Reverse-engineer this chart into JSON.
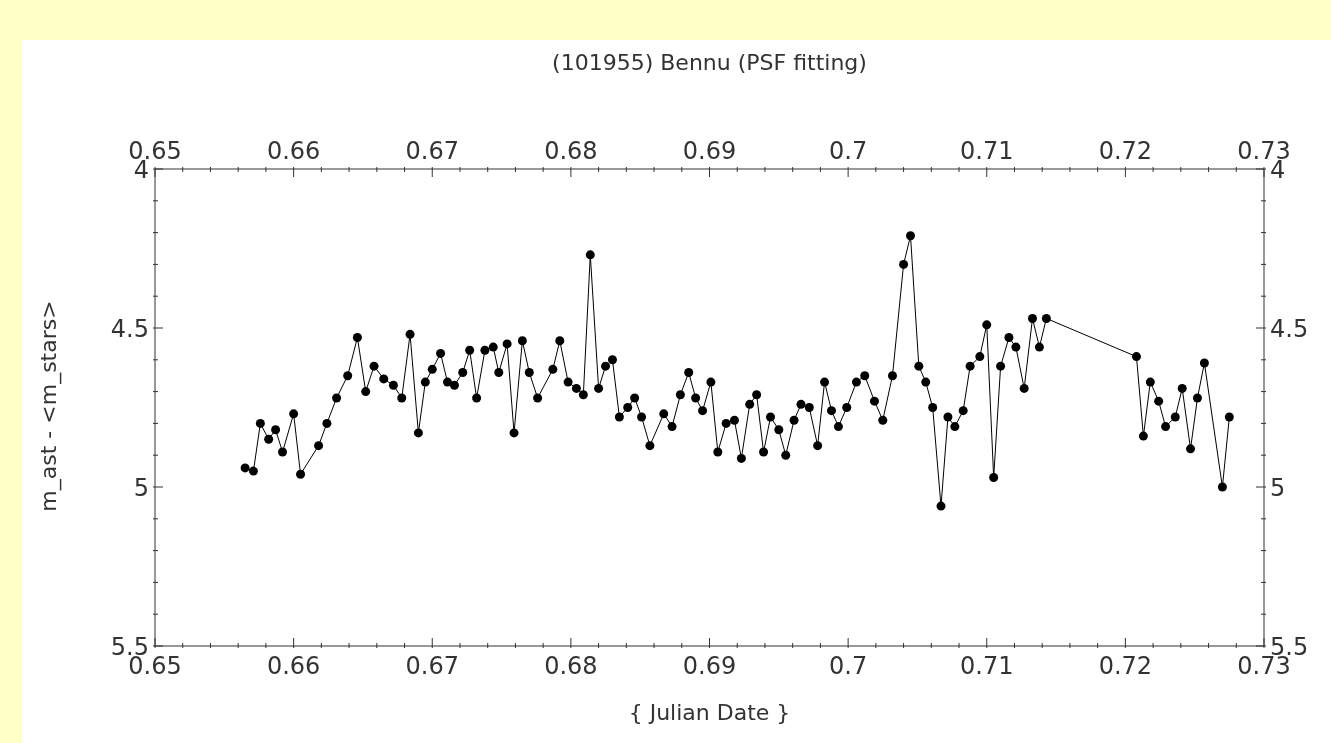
{
  "chart_data": {
    "type": "line",
    "title": "(101955) Bennu (PSF fitting)",
    "xlabel": "{ Julian Date }",
    "ylabel": "m_ast - <m_stars>",
    "marker": "circle",
    "line_style": "solid",
    "x": [
      0.6565,
      0.6571,
      0.6576,
      0.6582,
      0.6587,
      0.6592,
      0.66,
      0.6605,
      0.6618,
      0.6624,
      0.6631,
      0.6639,
      0.6646,
      0.6652,
      0.6658,
      0.6665,
      0.6672,
      0.6678,
      0.6684,
      0.669,
      0.6695,
      0.67,
      0.6706,
      0.6711,
      0.6716,
      0.6722,
      0.6727,
      0.6732,
      0.6738,
      0.6744,
      0.6748,
      0.6754,
      0.6759,
      0.6765,
      0.677,
      0.6776,
      0.6787,
      0.6792,
      0.6798,
      0.6804,
      0.6809,
      0.6814,
      0.682,
      0.6825,
      0.683,
      0.6835,
      0.6841,
      0.6846,
      0.6851,
      0.6857,
      0.6867,
      0.6873,
      0.6879,
      0.6885,
      0.689,
      0.6895,
      0.6901,
      0.6906,
      0.6912,
      0.6918,
      0.6923,
      0.6929,
      0.6934,
      0.6939,
      0.6944,
      0.695,
      0.6955,
      0.6961,
      0.6966,
      0.6972,
      0.6978,
      0.6983,
      0.6988,
      0.6993,
      0.6999,
      0.7006,
      0.7012,
      0.7019,
      0.7025,
      0.7032,
      0.704,
      0.7045,
      0.7051,
      0.7056,
      0.7061,
      0.7067,
      0.7072,
      0.7077,
      0.7083,
      0.7088,
      0.7095,
      0.71,
      0.7105,
      0.711,
      0.7116,
      0.7121,
      0.7127,
      0.7133,
      0.7138,
      0.7143,
      0.7208,
      0.7213,
      0.7218,
      0.7224,
      0.7229,
      0.7236,
      0.7241,
      0.7247,
      0.7252,
      0.7257,
      0.727,
      0.7275
    ],
    "series": [
      {
        "color": "#000000",
        "values": [
          4.94,
          4.95,
          4.8,
          4.85,
          4.82,
          4.89,
          4.77,
          4.96,
          4.87,
          4.8,
          4.72,
          4.65,
          4.53,
          4.7,
          4.62,
          4.66,
          4.68,
          4.72,
          4.52,
          4.83,
          4.67,
          4.63,
          4.58,
          4.67,
          4.68,
          4.64,
          4.57,
          4.72,
          4.57,
          4.56,
          4.64,
          4.55,
          4.83,
          4.54,
          4.64,
          4.72,
          4.63,
          4.54,
          4.67,
          4.69,
          4.71,
          4.27,
          4.69,
          4.62,
          4.6,
          4.78,
          4.75,
          4.72,
          4.78,
          4.87,
          4.77,
          4.81,
          4.71,
          4.64,
          4.72,
          4.76,
          4.67,
          4.89,
          4.8,
          4.79,
          4.91,
          4.74,
          4.71,
          4.89,
          4.78,
          4.82,
          4.9,
          4.79,
          4.74,
          4.75,
          4.87,
          4.67,
          4.76,
          4.81,
          4.75,
          4.67,
          4.65,
          4.73,
          4.79,
          4.65,
          4.3,
          4.21,
          4.62,
          4.67,
          4.75,
          5.06,
          4.78,
          4.81,
          4.76,
          4.62,
          4.59,
          4.49,
          4.97,
          4.62,
          4.53,
          4.56,
          4.69,
          4.47,
          4.56,
          4.47,
          4.59,
          4.84,
          4.67,
          4.73,
          4.81,
          4.78,
          4.69,
          4.88,
          4.72,
          4.61,
          5.0,
          4.78
        ]
      }
    ],
    "xlim": [
      0.65,
      0.73
    ],
    "xticks": [
      {
        "value": 0.65,
        "label": "0.65"
      },
      {
        "value": 0.652,
        "label": null
      },
      {
        "value": 0.654,
        "label": null
      },
      {
        "value": 0.656,
        "label": null
      },
      {
        "value": 0.658,
        "label": null
      },
      {
        "value": 0.66,
        "label": "0.66"
      },
      {
        "value": 0.662,
        "label": null
      },
      {
        "value": 0.664,
        "label": null
      },
      {
        "value": 0.666,
        "label": null
      },
      {
        "value": 0.668,
        "label": null
      },
      {
        "value": 0.67,
        "label": "0.67"
      },
      {
        "value": 0.672,
        "label": null
      },
      {
        "value": 0.674,
        "label": null
      },
      {
        "value": 0.676,
        "label": null
      },
      {
        "value": 0.678,
        "label": null
      },
      {
        "value": 0.68,
        "label": "0.68"
      },
      {
        "value": 0.682,
        "label": null
      },
      {
        "value": 0.684,
        "label": null
      },
      {
        "value": 0.686,
        "label": null
      },
      {
        "value": 0.688,
        "label": null
      },
      {
        "value": 0.69,
        "label": "0.69"
      },
      {
        "value": 0.692,
        "label": null
      },
      {
        "value": 0.694,
        "label": null
      },
      {
        "value": 0.696,
        "label": null
      },
      {
        "value": 0.698,
        "label": null
      },
      {
        "value": 0.7,
        "label": "0.7"
      },
      {
        "value": 0.702,
        "label": null
      },
      {
        "value": 0.704,
        "label": null
      },
      {
        "value": 0.706,
        "label": null
      },
      {
        "value": 0.708,
        "label": null
      },
      {
        "value": 0.71,
        "label": "0.71"
      },
      {
        "value": 0.712,
        "label": null
      },
      {
        "value": 0.714,
        "label": null
      },
      {
        "value": 0.716,
        "label": null
      },
      {
        "value": 0.718,
        "label": null
      },
      {
        "value": 0.72,
        "label": "0.72"
      },
      {
        "value": 0.722,
        "label": null
      },
      {
        "value": 0.724,
        "label": null
      },
      {
        "value": 0.726,
        "label": null
      },
      {
        "value": 0.728,
        "label": null
      },
      {
        "value": 0.73,
        "label": "0.73"
      }
    ],
    "x2lim": [
      0.65,
      0.73
    ],
    "x2ticks": [
      {
        "value": 0.65,
        "label": "0.65"
      },
      {
        "value": 0.652,
        "label": null
      },
      {
        "value": 0.654,
        "label": null
      },
      {
        "value": 0.656,
        "label": null
      },
      {
        "value": 0.658,
        "label": null
      },
      {
        "value": 0.66,
        "label": "0.66"
      },
      {
        "value": 0.662,
        "label": null
      },
      {
        "value": 0.664,
        "label": null
      },
      {
        "value": 0.666,
        "label": null
      },
      {
        "value": 0.668,
        "label": null
      },
      {
        "value": 0.67,
        "label": "0.67"
      },
      {
        "value": 0.672,
        "label": null
      },
      {
        "value": 0.674,
        "label": null
      },
      {
        "value": 0.676,
        "label": null
      },
      {
        "value": 0.678,
        "label": null
      },
      {
        "value": 0.68,
        "label": "0.68"
      },
      {
        "value": 0.682,
        "label": null
      },
      {
        "value": 0.684,
        "label": null
      },
      {
        "value": 0.686,
        "label": null
      },
      {
        "value": 0.688,
        "label": null
      },
      {
        "value": 0.69,
        "label": "0.69"
      },
      {
        "value": 0.692,
        "label": null
      },
      {
        "value": 0.694,
        "label": null
      },
      {
        "value": 0.696,
        "label": null
      },
      {
        "value": 0.698,
        "label": null
      },
      {
        "value": 0.7,
        "label": "0.7"
      },
      {
        "value": 0.702,
        "label": null
      },
      {
        "value": 0.704,
        "label": null
      },
      {
        "value": 0.706,
        "label": null
      },
      {
        "value": 0.708,
        "label": null
      },
      {
        "value": 0.71,
        "label": "0.71"
      },
      {
        "value": 0.712,
        "label": null
      },
      {
        "value": 0.714,
        "label": null
      },
      {
        "value": 0.716,
        "label": null
      },
      {
        "value": 0.718,
        "label": null
      },
      {
        "value": 0.72,
        "label": "0.72"
      },
      {
        "value": 0.722,
        "label": null
      },
      {
        "value": 0.724,
        "label": null
      },
      {
        "value": 0.726,
        "label": null
      },
      {
        "value": 0.728,
        "label": null
      },
      {
        "value": 0.73,
        "label": "0.73"
      }
    ],
    "ylim": [
      5.5,
      4
    ],
    "yticks": [
      {
        "value": 4,
        "label": "4"
      },
      {
        "value": 4.1,
        "label": null
      },
      {
        "value": 4.2,
        "label": null
      },
      {
        "value": 4.3,
        "label": null
      },
      {
        "value": 4.4,
        "label": null
      },
      {
        "value": 4.5,
        "label": "4.5"
      },
      {
        "value": 4.6,
        "label": null
      },
      {
        "value": 4.7,
        "label": null
      },
      {
        "value": 4.8,
        "label": null
      },
      {
        "value": 4.9,
        "label": null
      },
      {
        "value": 5,
        "label": "5"
      },
      {
        "value": 5.1,
        "label": null
      },
      {
        "value": 5.2,
        "label": null
      },
      {
        "value": 5.3,
        "label": null
      },
      {
        "value": 5.4,
        "label": null
      },
      {
        "value": 5.5,
        "label": "5.5"
      }
    ],
    "y2lim": [
      5.5,
      4
    ],
    "y2ticks": [
      {
        "value": 4,
        "label": "4"
      },
      {
        "value": 4.1,
        "label": null
      },
      {
        "value": 4.2,
        "label": null
      },
      {
        "value": 4.3,
        "label": null
      },
      {
        "value": 4.4,
        "label": null
      },
      {
        "value": 4.5,
        "label": "4.5"
      },
      {
        "value": 4.6,
        "label": null
      },
      {
        "value": 4.7,
        "label": null
      },
      {
        "value": 4.8,
        "label": null
      },
      {
        "value": 4.9,
        "label": null
      },
      {
        "value": 5,
        "label": "5"
      },
      {
        "value": 5.1,
        "label": null
      },
      {
        "value": 5.2,
        "label": null
      },
      {
        "value": 5.3,
        "label": null
      },
      {
        "value": 5.4,
        "label": null
      },
      {
        "value": 5.5,
        "label": "5.5"
      }
    ]
  }
}
